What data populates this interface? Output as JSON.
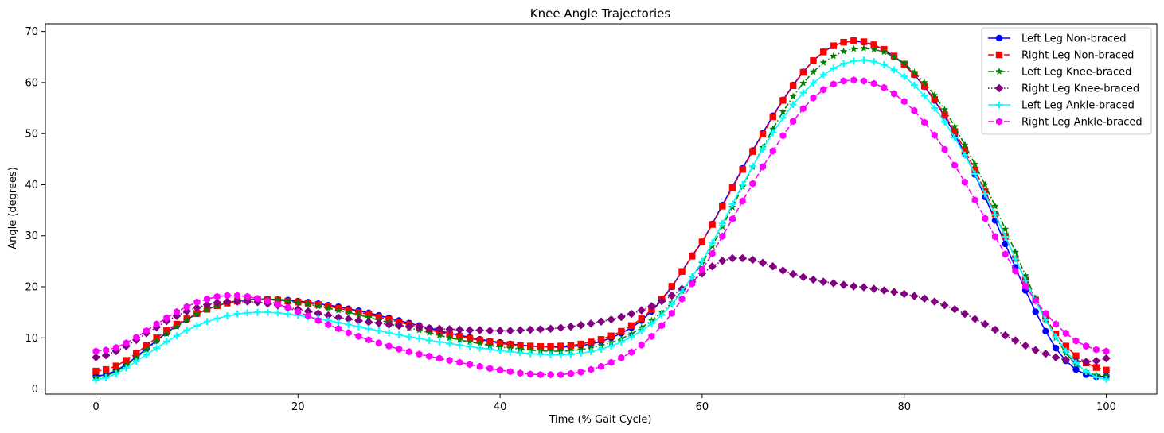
{
  "chart_data": {
    "type": "line",
    "title": "Knee Angle Trajectories",
    "xlabel": "Time (% Gait Cycle)",
    "ylabel": "Angle (degrees)",
    "xlim": [
      -5,
      105
    ],
    "ylim": [
      -1,
      71.5
    ],
    "xticks": [
      0,
      20,
      40,
      60,
      80,
      100
    ],
    "yticks": [
      0,
      10,
      20,
      30,
      40,
      50,
      60,
      70
    ],
    "grid": false,
    "legend_position": "top-right",
    "x": [
      0,
      1,
      2,
      3,
      4,
      5,
      6,
      7,
      8,
      9,
      10,
      11,
      12,
      13,
      14,
      15,
      16,
      17,
      18,
      19,
      20,
      21,
      22,
      23,
      24,
      25,
      26,
      27,
      28,
      29,
      30,
      31,
      32,
      33,
      34,
      35,
      36,
      37,
      38,
      39,
      40,
      41,
      42,
      43,
      44,
      45,
      46,
      47,
      48,
      49,
      50,
      51,
      52,
      53,
      54,
      55,
      56,
      57,
      58,
      59,
      60,
      61,
      62,
      63,
      64,
      65,
      66,
      67,
      68,
      69,
      70,
      71,
      72,
      73,
      74,
      75,
      76,
      77,
      78,
      79,
      80,
      81,
      82,
      83,
      84,
      85,
      86,
      87,
      88,
      89,
      90,
      91,
      92,
      93,
      94,
      95,
      96,
      97,
      98,
      99,
      100
    ],
    "series": [
      {
        "name": "Left Leg Non-braced",
        "color": "#0000ff",
        "linestyle": "solid",
        "marker": "circle",
        "values": [
          2.5,
          2.8,
          3.6,
          4.8,
          6.3,
          7.9,
          9.5,
          11.0,
          12.4,
          13.6,
          14.7,
          15.6,
          16.3,
          16.9,
          17.2,
          17.5,
          17.6,
          17.6,
          17.5,
          17.4,
          17.2,
          17.0,
          16.7,
          16.4,
          16.1,
          15.7,
          15.3,
          14.9,
          14.4,
          13.9,
          13.4,
          12.9,
          12.4,
          11.9,
          11.4,
          10.9,
          10.5,
          10.1,
          9.7,
          9.4,
          9.1,
          8.8,
          8.6,
          8.4,
          8.3,
          8.2,
          8.2,
          8.3,
          8.5,
          8.8,
          9.3,
          10.0,
          10.9,
          12.0,
          13.4,
          15.2,
          17.4,
          20.0,
          23.0,
          26.1,
          28.8,
          32.3,
          36.0,
          39.6,
          43.2,
          46.7,
          50.1,
          53.5,
          56.6,
          59.5,
          62.1,
          64.3,
          66.0,
          67.2,
          67.9,
          68.1,
          67.9,
          67.3,
          66.4,
          65.1,
          63.5,
          61.5,
          59.2,
          56.5,
          53.4,
          49.9,
          46.1,
          42.0,
          37.6,
          33.0,
          28.4,
          23.8,
          19.3,
          15.1,
          11.3,
          8.0,
          5.5,
          3.8,
          2.8,
          2.4,
          2.5
        ]
      },
      {
        "name": "Right Leg Non-braced",
        "color": "#ff0000",
        "linestyle": "dashed",
        "marker": "square",
        "values": [
          3.5,
          3.8,
          4.5,
          5.6,
          7.0,
          8.5,
          10.0,
          11.4,
          12.7,
          13.8,
          14.8,
          15.6,
          16.3,
          16.8,
          17.2,
          17.4,
          17.5,
          17.5,
          17.4,
          17.2,
          17.0,
          16.8,
          16.5,
          16.2,
          15.8,
          15.4,
          15.0,
          14.6,
          14.1,
          13.6,
          13.1,
          12.6,
          12.1,
          11.6,
          11.1,
          10.7,
          10.3,
          9.9,
          9.5,
          9.2,
          8.9,
          8.7,
          8.5,
          8.4,
          8.3,
          8.3,
          8.4,
          8.5,
          8.8,
          9.2,
          9.7,
          10.4,
          11.3,
          12.4,
          13.8,
          15.5,
          17.6,
          20.1,
          23.0,
          26.0,
          28.8,
          32.2,
          35.8,
          39.4,
          43.0,
          46.5,
          49.9,
          53.3,
          56.5,
          59.4,
          62.0,
          64.3,
          66.0,
          67.2,
          67.9,
          68.2,
          68.0,
          67.4,
          66.5,
          65.2,
          63.6,
          61.6,
          59.3,
          56.7,
          53.7,
          50.4,
          46.8,
          42.9,
          38.7,
          34.3,
          29.9,
          25.5,
          21.3,
          17.4,
          13.9,
          10.8,
          8.4,
          6.5,
          5.1,
          4.2,
          3.7
        ]
      },
      {
        "name": "Left Leg Knee-braced",
        "color": "#008000",
        "linestyle": "dashdot",
        "marker": "star",
        "values": [
          2.3,
          2.6,
          3.4,
          4.6,
          6.1,
          7.7,
          9.3,
          10.8,
          12.2,
          13.5,
          14.6,
          15.5,
          16.3,
          16.9,
          17.3,
          17.5,
          17.6,
          17.6,
          17.4,
          17.2,
          16.9,
          16.6,
          16.2,
          15.8,
          15.4,
          15.0,
          14.5,
          14.0,
          13.5,
          13.0,
          12.5,
          12.0,
          11.5,
          11.0,
          10.5,
          10.0,
          9.6,
          9.2,
          8.9,
          8.5,
          8.2,
          8.0,
          7.8,
          7.6,
          7.5,
          7.4,
          7.4,
          7.5,
          7.7,
          8.0,
          8.5,
          9.1,
          9.8,
          10.8,
          12.0,
          13.4,
          15.0,
          16.9,
          19.2,
          21.8,
          24.6,
          28.0,
          31.8,
          35.6,
          39.6,
          43.5,
          47.3,
          50.9,
          54.3,
          57.3,
          59.9,
          62.1,
          63.9,
          65.2,
          66.1,
          66.6,
          66.7,
          66.5,
          66.0,
          65.0,
          63.8,
          62.0,
          60.0,
          57.5,
          54.7,
          51.4,
          47.8,
          44.0,
          40.0,
          35.8,
          31.3,
          26.8,
          22.2,
          17.8,
          13.6,
          10.0,
          7.0,
          4.8,
          3.4,
          2.7,
          2.6
        ]
      },
      {
        "name": "Right Leg Knee-braced",
        "color": "#800080",
        "linestyle": "dotted",
        "marker": "diamond",
        "values": [
          6.2,
          6.6,
          7.4,
          8.4,
          9.6,
          10.9,
          12.1,
          13.3,
          14.3,
          15.2,
          15.9,
          16.5,
          16.9,
          17.1,
          17.1,
          17.1,
          17.0,
          16.7,
          16.4,
          16.0,
          15.6,
          15.2,
          14.8,
          14.4,
          14.0,
          13.7,
          13.4,
          13.1,
          12.9,
          12.6,
          12.4,
          12.2,
          12.1,
          11.9,
          11.8,
          11.7,
          11.6,
          11.5,
          11.5,
          11.4,
          11.4,
          11.4,
          11.5,
          11.6,
          11.7,
          11.8,
          12.0,
          12.2,
          12.5,
          12.8,
          13.2,
          13.6,
          14.1,
          14.7,
          15.4,
          16.2,
          17.2,
          18.3,
          19.6,
          21.0,
          22.6,
          24.0,
          25.1,
          25.6,
          25.6,
          25.3,
          24.7,
          24.0,
          23.2,
          22.5,
          21.9,
          21.4,
          21.0,
          20.7,
          20.4,
          20.1,
          19.9,
          19.6,
          19.3,
          19.0,
          18.6,
          18.2,
          17.7,
          17.1,
          16.4,
          15.6,
          14.7,
          13.7,
          12.7,
          11.6,
          10.5,
          9.5,
          8.5,
          7.6,
          6.9,
          6.2,
          5.7,
          5.4,
          5.3,
          5.5,
          6.0
        ]
      },
      {
        "name": "Left Leg Ankle-braced",
        "color": "#00ffff",
        "linestyle": "solid",
        "marker": "plus",
        "values": [
          1.8,
          2.2,
          3.0,
          4.1,
          5.4,
          6.7,
          8.0,
          9.3,
          10.4,
          11.5,
          12.4,
          13.2,
          13.8,
          14.3,
          14.7,
          14.9,
          15.0,
          15.0,
          14.9,
          14.7,
          14.4,
          14.1,
          13.8,
          13.4,
          13.0,
          12.6,
          12.2,
          11.8,
          11.4,
          11.0,
          10.6,
          10.2,
          9.9,
          9.5,
          9.2,
          8.9,
          8.6,
          8.3,
          8.0,
          7.8,
          7.5,
          7.3,
          7.1,
          6.9,
          6.8,
          6.7,
          6.7,
          6.8,
          7.0,
          7.3,
          7.8,
          8.4,
          9.2,
          10.2,
          11.4,
          12.8,
          14.5,
          16.6,
          19.1,
          22.0,
          25.0,
          28.6,
          32.4,
          36.2,
          40.0,
          43.6,
          47.0,
          50.2,
          53.1,
          55.7,
          58.0,
          59.9,
          61.5,
          62.8,
          63.7,
          64.2,
          64.4,
          64.1,
          63.5,
          62.5,
          61.2,
          59.5,
          57.4,
          55.0,
          52.3,
          49.2,
          45.8,
          42.1,
          38.2,
          34.1,
          29.8,
          25.5,
          21.2,
          17.2,
          13.5,
          10.2,
          7.4,
          5.1,
          3.4,
          2.3,
          1.9
        ]
      },
      {
        "name": "Right Leg Ankle-braced",
        "color": "#ff00ff",
        "linestyle": "dashed",
        "marker": "hexagon",
        "values": [
          7.4,
          7.6,
          8.1,
          9.0,
          10.1,
          11.4,
          12.7,
          13.9,
          15.1,
          16.1,
          17.0,
          17.6,
          18.1,
          18.3,
          18.3,
          18.1,
          17.7,
          17.2,
          16.6,
          15.9,
          15.1,
          14.3,
          13.4,
          12.6,
          11.8,
          11.0,
          10.3,
          9.6,
          9.0,
          8.4,
          7.8,
          7.3,
          6.8,
          6.4,
          6.0,
          5.6,
          5.2,
          4.8,
          4.4,
          4.0,
          3.7,
          3.4,
          3.1,
          2.9,
          2.8,
          2.8,
          2.8,
          3.0,
          3.3,
          3.8,
          4.4,
          5.2,
          6.1,
          7.2,
          8.6,
          10.3,
          12.4,
          14.8,
          17.6,
          20.6,
          23.4,
          26.5,
          29.9,
          33.3,
          36.8,
          40.2,
          43.5,
          46.6,
          49.6,
          52.4,
          54.9,
          57.0,
          58.6,
          59.7,
          60.3,
          60.5,
          60.3,
          59.8,
          59.0,
          57.8,
          56.3,
          54.5,
          52.2,
          49.7,
          46.9,
          43.8,
          40.5,
          37.0,
          33.4,
          29.8,
          26.4,
          23.1,
          20.1,
          17.3,
          14.8,
          12.7,
          10.9,
          9.4,
          8.4,
          7.7,
          7.4
        ]
      }
    ]
  }
}
